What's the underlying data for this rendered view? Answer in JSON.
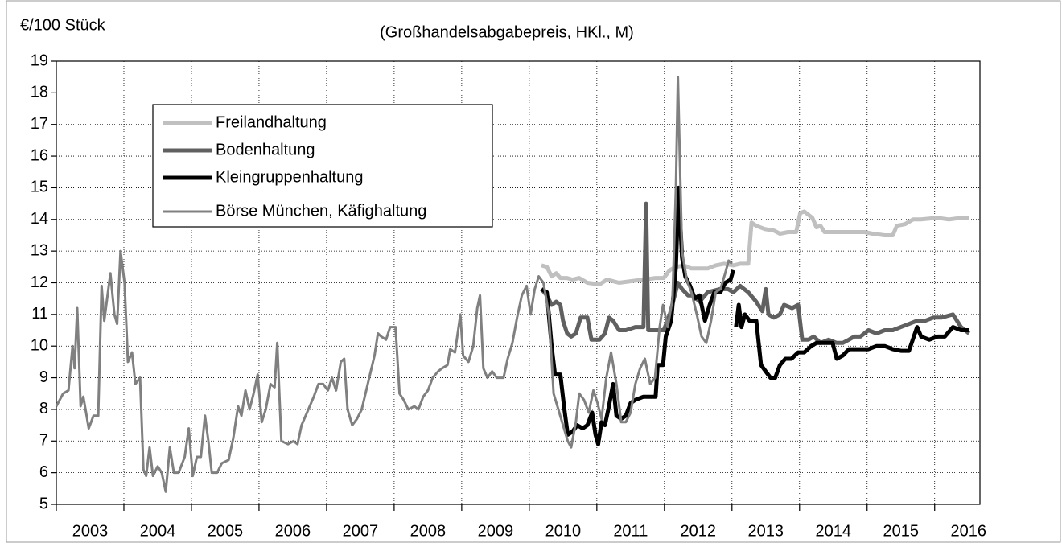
{
  "chart_data": {
    "type": "line",
    "title": "(Großhandelsabgabepreis, HKl., M)",
    "y_label": "€/100 Stück",
    "xlim": [
      2003,
      2016.67
    ],
    "xticks": [
      2003,
      2004,
      2005,
      2006,
      2007,
      2008,
      2009,
      2010,
      2011,
      2012,
      2013,
      2014,
      2015,
      2016
    ],
    "ylim": [
      5,
      19
    ],
    "yticks": [
      5,
      6,
      7,
      8,
      9,
      10,
      11,
      12,
      13,
      14,
      15,
      16,
      17,
      18,
      19
    ],
    "grid": true,
    "legend": "upper left",
    "series": [
      {
        "name": "Freilandhaltung",
        "color": "#c0c0c0",
        "width": 5,
        "x": [
          2010.18,
          2010.26,
          2010.33,
          2010.4,
          2010.46,
          2010.56,
          2010.64,
          2010.74,
          2010.86,
          2011.04,
          2011.15,
          2011.33,
          2011.51,
          2011.69,
          2011.87,
          2011.99,
          2012.08,
          2012.17,
          2012.29,
          2012.4,
          2012.52,
          2012.64,
          2012.76,
          2012.88,
          2013.02,
          2013.12,
          2013.24,
          2013.29,
          2013.36,
          2013.48,
          2013.62,
          2013.71,
          2013.83,
          2013.95,
          2014.01,
          2014.07,
          2014.19,
          2014.25,
          2014.31,
          2014.37,
          2014.55,
          2014.79,
          2014.96,
          2015.08,
          2015.26,
          2015.38,
          2015.44,
          2015.56,
          2015.68,
          2015.8,
          2016.04,
          2016.21,
          2016.39,
          2016.51
        ],
        "values": [
          12.55,
          12.5,
          12.2,
          12.3,
          12.15,
          12.15,
          12.1,
          12.15,
          12.0,
          11.95,
          12.1,
          12.0,
          12.05,
          12.1,
          12.15,
          12.15,
          12.4,
          12.5,
          12.55,
          12.45,
          12.45,
          12.45,
          12.55,
          12.6,
          12.55,
          12.6,
          12.6,
          13.9,
          13.8,
          13.7,
          13.65,
          13.55,
          13.6,
          13.6,
          14.2,
          14.25,
          14.05,
          13.75,
          13.8,
          13.6,
          13.6,
          13.6,
          13.6,
          13.55,
          13.5,
          13.5,
          13.8,
          13.85,
          14.0,
          14.0,
          14.05,
          14.0,
          14.05,
          14.05
        ]
      },
      {
        "name": "Bodenhaltung",
        "color": "#606060",
        "width": 5,
        "x": [
          2010.18,
          2010.26,
          2010.33,
          2010.4,
          2010.46,
          2010.5,
          2010.56,
          2010.62,
          2010.69,
          2010.76,
          2010.86,
          2010.92,
          2011.04,
          2011.12,
          2011.18,
          2011.24,
          2011.33,
          2011.43,
          2011.57,
          2011.69,
          2011.73,
          2011.76,
          2011.87,
          2011.99,
          2012.08,
          2012.14,
          2012.2,
          2012.26,
          2012.35,
          2012.43,
          2012.52,
          2012.64,
          2012.82,
          2012.94,
          2013.02,
          2013.12,
          2013.24,
          2013.36,
          2013.45,
          2013.5,
          2013.54,
          2013.62,
          2013.71,
          2013.77,
          2013.89,
          2013.98,
          2014.04,
          2014.13,
          2014.21,
          2014.31,
          2014.43,
          2014.55,
          2014.64,
          2014.73,
          2014.81,
          2014.9,
          2015.02,
          2015.14,
          2015.26,
          2015.38,
          2015.5,
          2015.62,
          2015.74,
          2015.86,
          2015.98,
          2016.1,
          2016.27,
          2016.39,
          2016.51
        ],
        "values": [
          11.8,
          11.6,
          11.3,
          11.4,
          11.3,
          10.8,
          10.4,
          10.3,
          10.4,
          10.9,
          10.9,
          10.2,
          10.2,
          10.4,
          10.9,
          10.8,
          10.5,
          10.5,
          10.6,
          10.6,
          14.5,
          10.5,
          10.5,
          10.5,
          11.0,
          11.5,
          12.0,
          11.8,
          11.6,
          11.6,
          11.4,
          11.7,
          11.8,
          11.8,
          11.7,
          11.9,
          11.7,
          11.4,
          11.1,
          11.8,
          11.0,
          10.9,
          11.0,
          11.3,
          11.2,
          11.3,
          10.2,
          10.2,
          10.3,
          10.1,
          10.2,
          10.1,
          10.1,
          10.2,
          10.3,
          10.3,
          10.5,
          10.4,
          10.5,
          10.5,
          10.6,
          10.7,
          10.8,
          10.8,
          10.9,
          10.9,
          11.0,
          10.6,
          10.4
        ]
      },
      {
        "name": "Kleingruppenhaltung",
        "color": "#000000",
        "width": 5,
        "x": [
          2010.18,
          2010.26,
          2010.33,
          2010.38,
          2010.46,
          2010.52,
          2010.57,
          2010.64,
          2010.71,
          2010.79,
          2010.86,
          2010.93,
          2010.98,
          2011.02,
          2011.07,
          2011.12,
          2011.17,
          2011.24,
          2011.29,
          2011.36,
          2011.43,
          2011.5,
          2011.57,
          2011.69,
          2011.79,
          2011.87,
          2011.9,
          2011.98,
          2012.02,
          2012.1,
          2012.17,
          2012.21,
          2012.26,
          2012.31,
          2012.38,
          2012.45,
          2012.52,
          2012.6,
          2012.67,
          2012.74,
          2012.83,
          2012.9,
          2012.98,
          2013.02,
          2013.04,
          2013.06,
          2013.1,
          2013.14,
          2013.19,
          2013.26,
          2013.36,
          2013.43,
          2013.5,
          2013.57,
          2013.64,
          2013.71,
          2013.79,
          2013.88,
          2013.98,
          2014.07,
          2014.17,
          2014.25,
          2014.37,
          2014.49,
          2014.55,
          2014.64,
          2014.73,
          2014.85,
          2015.02,
          2015.14,
          2015.26,
          2015.38,
          2015.5,
          2015.62,
          2015.74,
          2015.8,
          2015.92,
          2016.04,
          2016.15,
          2016.27,
          2016.39,
          2016.51
        ],
        "values": [
          11.8,
          11.7,
          10.0,
          9.1,
          9.1,
          8.0,
          7.2,
          7.3,
          7.5,
          7.4,
          7.5,
          7.9,
          7.2,
          6.9,
          7.6,
          7.5,
          8.0,
          8.8,
          7.8,
          7.7,
          7.8,
          8.2,
          8.3,
          8.4,
          8.4,
          8.4,
          9.4,
          9.4,
          10.3,
          10.8,
          12.5,
          15.0,
          12.8,
          12.2,
          11.9,
          11.5,
          11.6,
          10.8,
          11.3,
          11.7,
          11.7,
          12.0,
          12.1,
          12.4,
          null,
          10.6,
          11.3,
          10.6,
          11.0,
          10.8,
          10.8,
          9.4,
          9.2,
          9.0,
          9.0,
          9.4,
          9.6,
          9.6,
          9.8,
          9.8,
          10.0,
          10.1,
          10.1,
          10.1,
          9.6,
          9.7,
          9.9,
          9.9,
          9.9,
          10.0,
          10.0,
          9.9,
          9.85,
          9.85,
          10.6,
          10.3,
          10.2,
          10.3,
          10.3,
          10.6,
          10.5,
          10.5
        ]
      },
      {
        "name": "Börse München, Käfighaltung",
        "color": "#808080",
        "width": 3,
        "x": [
          2003.0,
          2003.1,
          2003.18,
          2003.24,
          2003.27,
          2003.31,
          2003.36,
          2003.4,
          2003.48,
          2003.55,
          2003.62,
          2003.67,
          2003.71,
          2003.8,
          2003.86,
          2003.9,
          2003.95,
          2004.01,
          2004.06,
          2004.12,
          2004.17,
          2004.24,
          2004.29,
          2004.33,
          2004.38,
          2004.43,
          2004.5,
          2004.56,
          2004.62,
          2004.68,
          2004.74,
          2004.81,
          2004.9,
          2004.96,
          2005.02,
          2005.08,
          2005.14,
          2005.2,
          2005.25,
          2005.3,
          2005.38,
          2005.45,
          2005.55,
          2005.62,
          2005.69,
          2005.74,
          2005.8,
          2005.86,
          2005.92,
          2005.98,
          2006.04,
          2006.1,
          2006.17,
          2006.23,
          2006.27,
          2006.33,
          2006.43,
          2006.51,
          2006.57,
          2006.63,
          2006.71,
          2006.81,
          2006.88,
          2006.95,
          2007.02,
          2007.08,
          2007.14,
          2007.21,
          2007.26,
          2007.31,
          2007.38,
          2007.45,
          2007.52,
          2007.62,
          2007.71,
          2007.76,
          2007.81,
          2007.88,
          2007.94,
          2008.02,
          2008.08,
          2008.14,
          2008.21,
          2008.3,
          2008.36,
          2008.43,
          2008.5,
          2008.57,
          2008.65,
          2008.71,
          2008.79,
          2008.83,
          2008.9,
          2008.98,
          2009.02,
          2009.1,
          2009.17,
          2009.23,
          2009.27,
          2009.32,
          2009.38,
          2009.45,
          2009.52,
          2009.62,
          2009.68,
          2009.75,
          2009.82,
          2009.89,
          2009.96,
          2010.02,
          2010.08,
          2010.14,
          2010.21,
          2010.29,
          2010.36,
          2010.43,
          2010.5,
          2010.57,
          2010.62,
          2010.69,
          2010.74,
          2010.81,
          2010.88,
          2010.95,
          2011.01,
          2011.07,
          2011.14,
          2011.21,
          2011.29,
          2011.36,
          2011.43,
          2011.5,
          2011.57,
          2011.64,
          2011.71,
          2011.79,
          2011.86,
          2011.93,
          2011.98,
          2012.05,
          2012.12,
          2012.17,
          2012.2,
          2012.26,
          2012.33,
          2012.4,
          2012.48,
          2012.55,
          2012.62,
          2012.69,
          2012.76,
          2012.83,
          2012.9,
          2012.95,
          2013.0
        ],
        "values": [
          8.1,
          8.5,
          8.6,
          10.0,
          9.3,
          11.2,
          8.1,
          8.4,
          7.4,
          7.8,
          7.8,
          11.9,
          10.8,
          12.3,
          11.0,
          10.7,
          13.0,
          12.0,
          9.5,
          9.8,
          8.8,
          9.0,
          6.1,
          5.9,
          6.8,
          5.9,
          6.2,
          6.0,
          5.4,
          6.8,
          6.0,
          6.0,
          6.5,
          7.4,
          5.9,
          6.5,
          6.5,
          7.8,
          7.0,
          6.0,
          6.0,
          6.3,
          6.4,
          7.1,
          8.1,
          7.8,
          8.6,
          8.0,
          8.5,
          9.1,
          7.6,
          8.0,
          8.8,
          8.7,
          10.1,
          7.0,
          6.9,
          7.0,
          6.9,
          7.5,
          7.9,
          8.4,
          8.8,
          8.8,
          8.6,
          9.0,
          8.6,
          9.5,
          9.6,
          8.0,
          7.5,
          7.7,
          8.0,
          8.9,
          9.7,
          10.4,
          10.3,
          10.2,
          10.6,
          10.6,
          8.5,
          8.3,
          8.0,
          8.1,
          8.0,
          8.4,
          8.6,
          9.0,
          9.2,
          9.3,
          9.4,
          9.9,
          9.8,
          11.0,
          9.7,
          9.5,
          10.0,
          11.2,
          11.6,
          9.3,
          9.0,
          9.2,
          9.0,
          9.0,
          9.6,
          10.1,
          10.9,
          11.6,
          11.9,
          11.0,
          11.8,
          12.2,
          12.0,
          11.0,
          8.5,
          8.0,
          7.5,
          7.0,
          6.8,
          7.6,
          8.5,
          8.3,
          7.9,
          8.6,
          8.2,
          7.7,
          9.0,
          9.8,
          8.8,
          7.6,
          7.6,
          7.9,
          8.8,
          9.3,
          9.6,
          8.8,
          9.0,
          10.6,
          11.3,
          10.6,
          11.5,
          15.0,
          18.5,
          13.0,
          12.1,
          11.7,
          11.0,
          10.3,
          10.1,
          10.8,
          11.7,
          11.8,
          12.3,
          12.7,
          12.6
        ]
      }
    ]
  }
}
